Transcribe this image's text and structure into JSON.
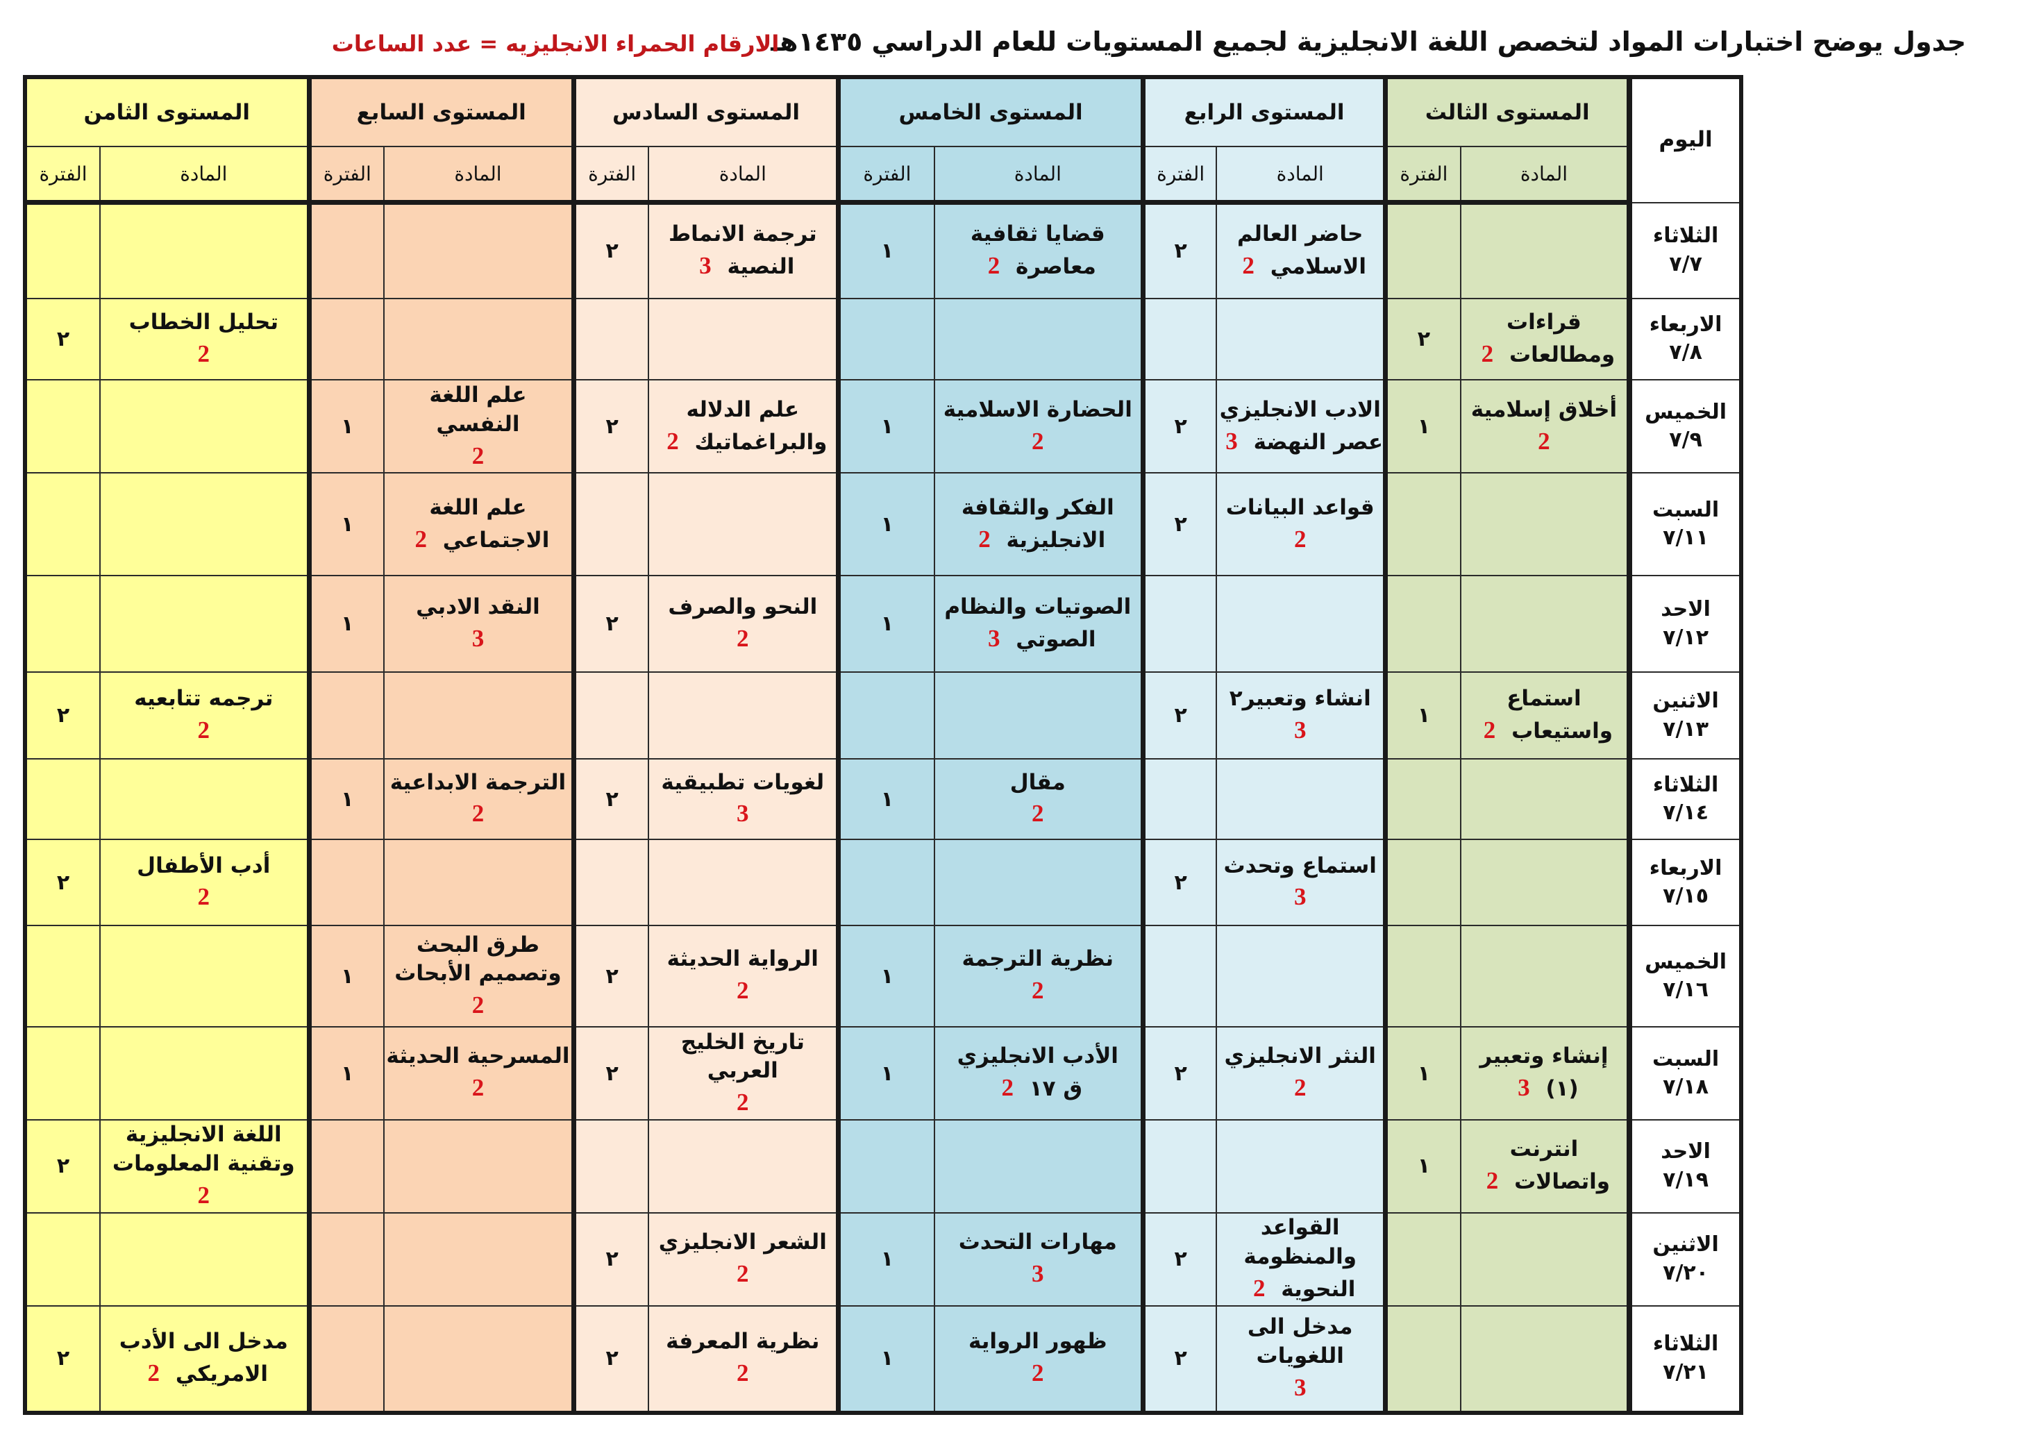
{
  "title": "جدول يوضح اختبارات المواد لتخصص اللغة الانجليزية لجميع المستويات للعام الدراسي ١٤٣٥هـ",
  "note": "الارقام الحمراء الانجليزيه = عدد الساعات",
  "headers": {
    "day": "اليوم",
    "subject": "المادة",
    "period": "الفترة",
    "levels": [
      "المستوى الثالث",
      "المستوى الرابع",
      "المستوى الخامس",
      "المستوى السادس",
      "المستوى السابع",
      "المستوى الثامن"
    ]
  },
  "colors": {
    "hours": "#d9151b",
    "level3": "#d8e4bc",
    "level4": "#dbeef4",
    "level5": "#b7dde8",
    "level6": "#fde9d9",
    "level7": "#fbd4b4",
    "level8": "#ffff99"
  },
  "rows": [
    {
      "day": "الثلاثاء",
      "date": "٧/٧",
      "cells": [
        {
          "s1": "",
          "s2": "",
          "h": "",
          "p": ""
        },
        {
          "s1": "حاضر العالم",
          "s2": "الاسلامي",
          "h": "2",
          "p": "٢"
        },
        {
          "s1": "قضايا ثقافية",
          "s2": "معاصرة",
          "h": "2",
          "p": "١"
        },
        {
          "s1": "ترجمة الانماط",
          "s2": "النصية",
          "h": "3",
          "p": "٢"
        },
        {
          "s1": "",
          "s2": "",
          "h": "",
          "p": ""
        },
        {
          "s1": "",
          "s2": "",
          "h": "",
          "p": ""
        }
      ]
    },
    {
      "day": "الاربعاء",
      "date": "٧/٨",
      "cells": [
        {
          "s1": "قراءات",
          "s2": "ومطالعات",
          "h": "2",
          "p": "٢"
        },
        {
          "s1": "",
          "s2": "",
          "h": "",
          "p": ""
        },
        {
          "s1": "",
          "s2": "",
          "h": "",
          "p": ""
        },
        {
          "s1": "",
          "s2": "",
          "h": "",
          "p": ""
        },
        {
          "s1": "",
          "s2": "",
          "h": "",
          "p": ""
        },
        {
          "s1": "تحليل الخطاب",
          "s2": "",
          "h": "2",
          "p": "٢"
        }
      ]
    },
    {
      "day": "الخميس",
      "date": "٧/٩",
      "cells": [
        {
          "s1": "أخلاق إسلامية",
          "s2": "",
          "h": "2",
          "p": "١"
        },
        {
          "s1": "الادب الانجليزي",
          "s2": "عصر النهضة",
          "h": "3",
          "p": "٢"
        },
        {
          "s1": "الحضارة الاسلامية",
          "s2": "",
          "h": "2",
          "p": "١"
        },
        {
          "s1": "علم الدلاله",
          "s2": "والبراغماتيك",
          "h": "2",
          "p": "٢"
        },
        {
          "s1": "علم اللغة النفسي",
          "s2": "",
          "h": "2",
          "p": "١"
        },
        {
          "s1": "",
          "s2": "",
          "h": "",
          "p": ""
        }
      ]
    },
    {
      "day": "السبت",
      "date": "٧/١١",
      "cells": [
        {
          "s1": "",
          "s2": "",
          "h": "",
          "p": ""
        },
        {
          "s1": "قواعد البيانات",
          "s2": "",
          "h": "2",
          "p": "٢"
        },
        {
          "s1": "الفكر والثقافة",
          "s2": "الانجليزية",
          "h": "2",
          "p": "١"
        },
        {
          "s1": "",
          "s2": "",
          "h": "",
          "p": ""
        },
        {
          "s1": "علم اللغة",
          "s2": "الاجتماعي",
          "h": "2",
          "p": "١"
        },
        {
          "s1": "",
          "s2": "",
          "h": "",
          "p": ""
        }
      ]
    },
    {
      "day": "الاحد",
      "date": "٧/١٢",
      "cells": [
        {
          "s1": "",
          "s2": "",
          "h": "",
          "p": ""
        },
        {
          "s1": "",
          "s2": "",
          "h": "",
          "p": ""
        },
        {
          "s1": "الصوتيات والنظام",
          "s2": "الصوتي",
          "h": "3",
          "p": "١"
        },
        {
          "s1": "النحو والصرف",
          "s2": "",
          "h": "2",
          "p": "٢"
        },
        {
          "s1": "النقد الادبي",
          "s2": "",
          "h": "3",
          "p": "١"
        },
        {
          "s1": "",
          "s2": "",
          "h": "",
          "p": ""
        }
      ]
    },
    {
      "day": "الاثنين",
      "date": "٧/١٣",
      "cells": [
        {
          "s1": "استماع",
          "s2": "واستيعاب",
          "h": "2",
          "p": "١"
        },
        {
          "s1": "انشاء وتعبير٢",
          "s2": "",
          "h": "3",
          "p": "٢"
        },
        {
          "s1": "",
          "s2": "",
          "h": "",
          "p": ""
        },
        {
          "s1": "",
          "s2": "",
          "h": "",
          "p": ""
        },
        {
          "s1": "",
          "s2": "",
          "h": "",
          "p": ""
        },
        {
          "s1": "ترجمه تتابعيه",
          "s2": "",
          "h": "2",
          "p": "٢"
        }
      ]
    },
    {
      "day": "الثلاثاء",
      "date": "٧/١٤",
      "cells": [
        {
          "s1": "",
          "s2": "",
          "h": "",
          "p": ""
        },
        {
          "s1": "",
          "s2": "",
          "h": "",
          "p": ""
        },
        {
          "s1": "مقال",
          "s2": "",
          "h": "2",
          "p": "١"
        },
        {
          "s1": "لغويات تطبيقية",
          "s2": "",
          "h": "3",
          "p": "٢"
        },
        {
          "s1": "الترجمة الابداعية",
          "s2": "",
          "h": "2",
          "p": "١"
        },
        {
          "s1": "",
          "s2": "",
          "h": "",
          "p": ""
        }
      ]
    },
    {
      "day": "الاربعاء",
      "date": "٧/١٥",
      "cells": [
        {
          "s1": "",
          "s2": "",
          "h": "",
          "p": ""
        },
        {
          "s1": "استماع وتحدث",
          "s2": "",
          "h": "3",
          "p": "٢"
        },
        {
          "s1": "",
          "s2": "",
          "h": "",
          "p": ""
        },
        {
          "s1": "",
          "s2": "",
          "h": "",
          "p": ""
        },
        {
          "s1": "",
          "s2": "",
          "h": "",
          "p": ""
        },
        {
          "s1": "أدب الأطفال",
          "s2": "",
          "h": "2",
          "p": "٢"
        }
      ]
    },
    {
      "day": "الخميس",
      "date": "٧/١٦",
      "cells": [
        {
          "s1": "",
          "s2": "",
          "h": "",
          "p": ""
        },
        {
          "s1": "",
          "s2": "",
          "h": "",
          "p": ""
        },
        {
          "s1": "نظرية الترجمة",
          "s2": "",
          "h": "2",
          "p": "١"
        },
        {
          "s1": "الرواية الحديثة",
          "s2": "",
          "h": "2",
          "p": "٢"
        },
        {
          "s1": "طرق البحث",
          "s2": "وتصميم الأبحاث",
          "h": "2",
          "p": "١"
        },
        {
          "s1": "",
          "s2": "",
          "h": "",
          "p": ""
        }
      ]
    },
    {
      "day": "السبت",
      "date": "٧/١٨",
      "cells": [
        {
          "s1": "إنشاء وتعبير",
          "s2": "(١)",
          "h": "3",
          "p": "١"
        },
        {
          "s1": "النثر الانجليزي",
          "s2": "",
          "h": "2",
          "p": "٢"
        },
        {
          "s1": "الأدب الانجليزي",
          "s2": "ق ١٧",
          "h": "2",
          "p": "١"
        },
        {
          "s1": "تاريخ الخليج العربي",
          "s2": "",
          "h": "2",
          "p": "٢"
        },
        {
          "s1": "المسرحية الحديثة",
          "s2": "",
          "h": "2",
          "p": "١"
        },
        {
          "s1": "",
          "s2": "",
          "h": "",
          "p": ""
        }
      ]
    },
    {
      "day": "الاحد",
      "date": "٧/١٩",
      "cells": [
        {
          "s1": "انترنت",
          "s2": "واتصالات",
          "h": "2",
          "p": "١"
        },
        {
          "s1": "",
          "s2": "",
          "h": "",
          "p": ""
        },
        {
          "s1": "",
          "s2": "",
          "h": "",
          "p": ""
        },
        {
          "s1": "",
          "s2": "",
          "h": "",
          "p": ""
        },
        {
          "s1": "",
          "s2": "",
          "h": "",
          "p": ""
        },
        {
          "s1": "اللغة الانجليزية",
          "s2": "وتقنية المعلومات",
          "h": "2",
          "p": "٢"
        }
      ]
    },
    {
      "day": "الاثنين",
      "date": "٧/٢٠",
      "cells": [
        {
          "s1": "",
          "s2": "",
          "h": "",
          "p": ""
        },
        {
          "s1": "القواعد والمنظومة",
          "s2": "النحوية",
          "h": "2",
          "p": "٢"
        },
        {
          "s1": "مهارات التحدث",
          "s2": "",
          "h": "3",
          "p": "١"
        },
        {
          "s1": "الشعر الانجليزي",
          "s2": "",
          "h": "2",
          "p": "٢"
        },
        {
          "s1": "",
          "s2": "",
          "h": "",
          "p": ""
        },
        {
          "s1": "",
          "s2": "",
          "h": "",
          "p": ""
        }
      ]
    },
    {
      "day": "الثلاثاء",
      "date": "٧/٢١",
      "cells": [
        {
          "s1": "",
          "s2": "",
          "h": "",
          "p": ""
        },
        {
          "s1": "مدخل الى اللغويات",
          "s2": "",
          "h": "3",
          "p": "٢"
        },
        {
          "s1": "ظهور الرواية",
          "s2": "",
          "h": "2",
          "p": "١"
        },
        {
          "s1": "نظرية المعرفة",
          "s2": "",
          "h": "2",
          "p": "٢"
        },
        {
          "s1": "",
          "s2": "",
          "h": "",
          "p": ""
        },
        {
          "s1": "مدخل الى الأدب",
          "s2": "الامريكي",
          "h": "2",
          "p": "٢"
        }
      ]
    }
  ]
}
